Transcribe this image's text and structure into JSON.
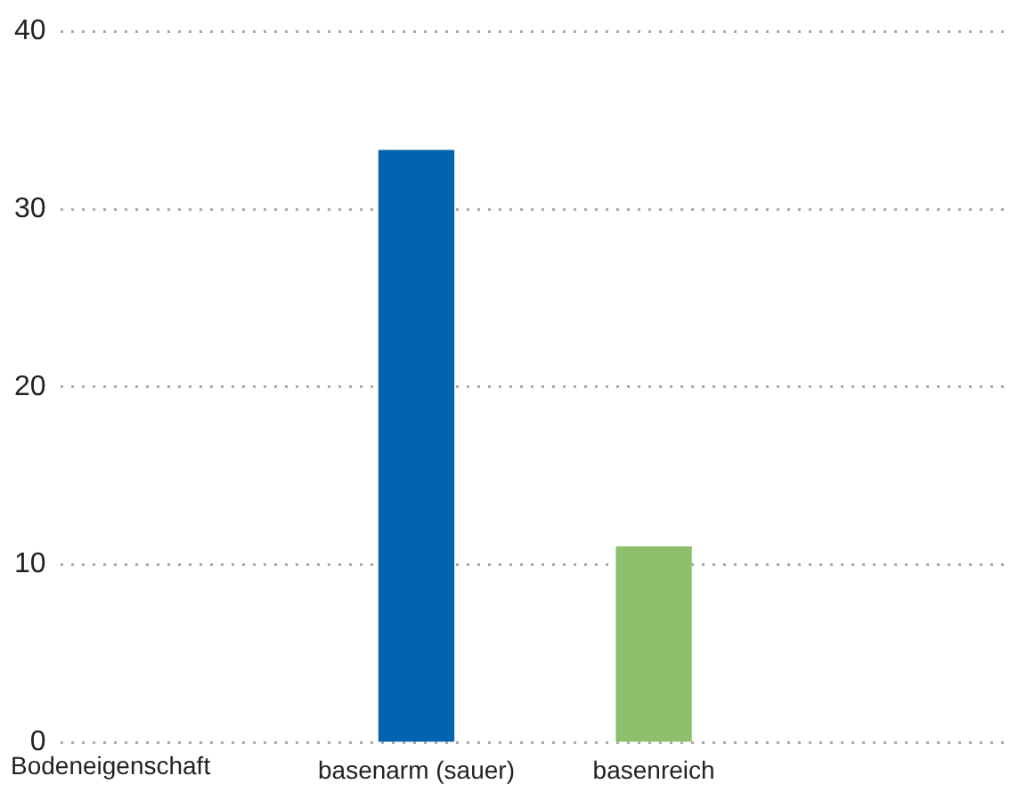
{
  "chart_data": {
    "type": "bar",
    "xlabel": "Bodeneigenschaft",
    "categories": [
      "basenarm (sauer)",
      "basenreich"
    ],
    "values": [
      33.3,
      11
    ],
    "colors": [
      "#0064b0",
      "#8cc06c"
    ],
    "ylim": [
      0,
      40
    ],
    "yticks": [
      0,
      10,
      20,
      30,
      40
    ],
    "grid": "y",
    "legend": false
  }
}
